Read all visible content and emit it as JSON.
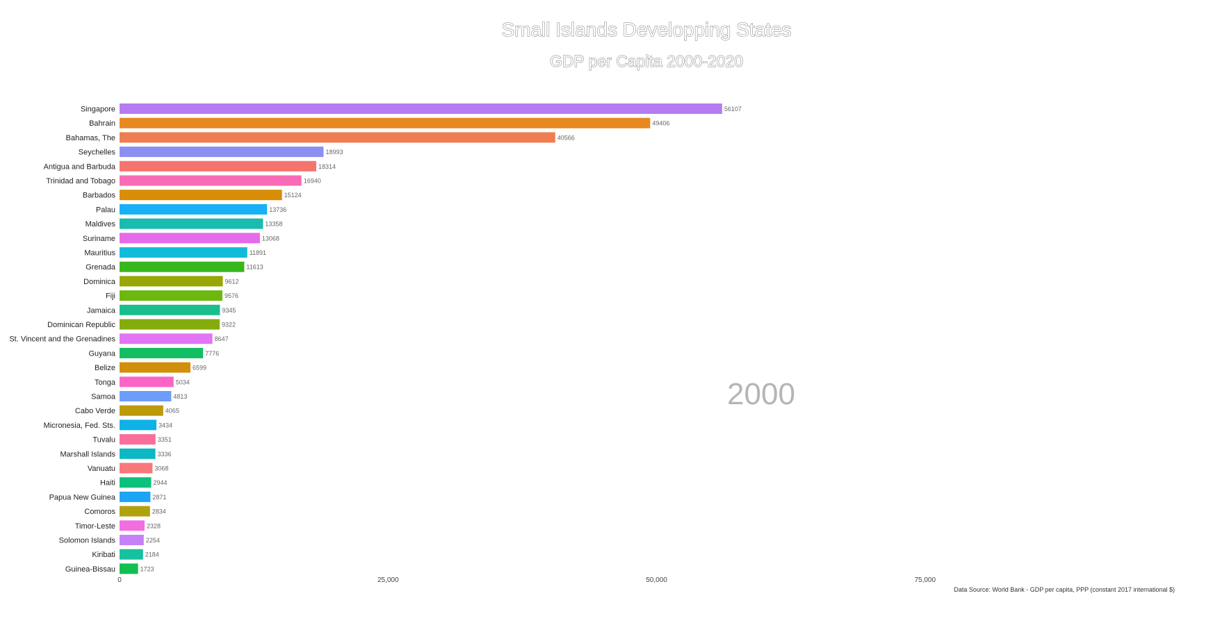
{
  "chart_data": {
    "type": "bar",
    "orientation": "horizontal",
    "title": "Small Islands Developping States",
    "subtitle": "GDP per Capita 2000-2020",
    "year": "2000",
    "source": "Data Source: World Bank - GDP per capita, PPP (constant 2017 international $)",
    "xlim": [
      0,
      100000
    ],
    "ticks": [
      0,
      25000,
      50000,
      75000
    ],
    "tick_labels": [
      "0",
      "25,000",
      "50,000",
      "75,000"
    ],
    "grid": false,
    "categories": [
      "Singapore",
      "Bahrain",
      "Bahamas, The",
      "Seychelles",
      "Antigua and Barbuda",
      "Trinidad and Tobago",
      "Barbados",
      "Palau",
      "Maldives",
      "Suriname",
      "Mauritius",
      "Grenada",
      "Dominica",
      "Fiji",
      "Jamaica",
      "Dominican Republic",
      "St. Vincent and the Grenadines",
      "Guyana",
      "Belize",
      "Tonga",
      "Samoa",
      "Cabo Verde",
      "Micronesia, Fed. Sts.",
      "Tuvalu",
      "Marshall Islands",
      "Vanuatu",
      "Haiti",
      "Papua New Guinea",
      "Comoros",
      "Timor-Leste",
      "Solomon Islands",
      "Kiribati",
      "Guinea-Bissau"
    ],
    "values": [
      56107,
      49406,
      40566,
      18993,
      18314,
      16940,
      15124,
      13736,
      13358,
      13068,
      11891,
      11613,
      9612,
      9576,
      9345,
      9322,
      8647,
      7776,
      6599,
      5034,
      4813,
      4065,
      3434,
      3351,
      3336,
      3068,
      2944,
      2871,
      2834,
      2328,
      2254,
      2184,
      1723
    ],
    "colors": [
      "#b57cf2",
      "#e6891f",
      "#ee7d52",
      "#8c8ff2",
      "#f6746e",
      "#f96bb6",
      "#d98d06",
      "#18b0f6",
      "#19bcae",
      "#e66be9",
      "#13bbdb",
      "#38b71c",
      "#97a703",
      "#6cb80f",
      "#19be8c",
      "#84ac0a",
      "#e275f3",
      "#13be62",
      "#d18f0a",
      "#fb66c6",
      "#6c9df9",
      "#bc9a09",
      "#0eb2e6",
      "#fb6e9b",
      "#0bb8c3",
      "#f8787b",
      "#0ac27b",
      "#1aa5f5",
      "#afa20c",
      "#f16ee0",
      "#c681f8",
      "#16c19d",
      "#12bf50"
    ]
  }
}
